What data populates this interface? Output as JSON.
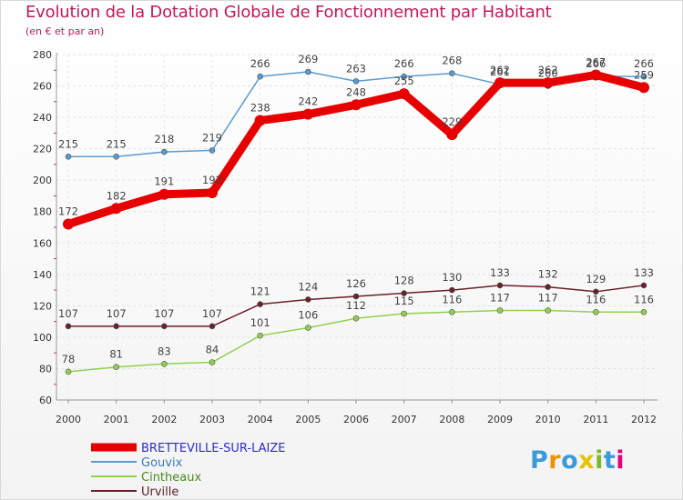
{
  "chart_data": {
    "type": "line",
    "title": "Evolution de la Dotation Globale de Fonctionnement par Habitant",
    "subtitle": "(en € et par an)",
    "categories": [
      "2000",
      "2001",
      "2002",
      "2003",
      "2004",
      "2005",
      "2006",
      "2007",
      "2008",
      "2009",
      "2010",
      "2011",
      "2012"
    ],
    "ylim": [
      60,
      280
    ],
    "yticks": [
      60,
      80,
      100,
      120,
      140,
      160,
      180,
      200,
      220,
      240,
      260,
      280
    ],
    "grid": true,
    "series": [
      {
        "name": "BRETTEVILLE-SUR-LAIZE",
        "color": "#e60000",
        "values": [
          172,
          182,
          191,
          192,
          238,
          242,
          248,
          255,
          229,
          262,
          262,
          267,
          259
        ]
      },
      {
        "name": "Gouvix",
        "color": "#5b9ad0",
        "values": [
          215,
          215,
          218,
          219,
          266,
          269,
          263,
          266,
          268,
          261,
          260,
          266,
          266
        ]
      },
      {
        "name": "Cintheaux",
        "color": "#8fd14f",
        "values": [
          78,
          81,
          83,
          84,
          101,
          106,
          112,
          115,
          116,
          117,
          117,
          116,
          116
        ]
      },
      {
        "name": "Urville",
        "color": "#6b1f2a",
        "values": [
          107,
          107,
          107,
          107,
          121,
          124,
          126,
          128,
          130,
          133,
          132,
          129,
          133
        ]
      }
    ],
    "legend_position": "bottom-left"
  },
  "brand": {
    "letters": [
      "P",
      "r",
      "o",
      "x",
      "i",
      "t",
      "i"
    ],
    "colors": [
      "#3a9bd8",
      "#f29100",
      "#3a9bd8",
      "#e8c200",
      "#7ab929",
      "#3a9bd8",
      "#e6007e"
    ]
  }
}
